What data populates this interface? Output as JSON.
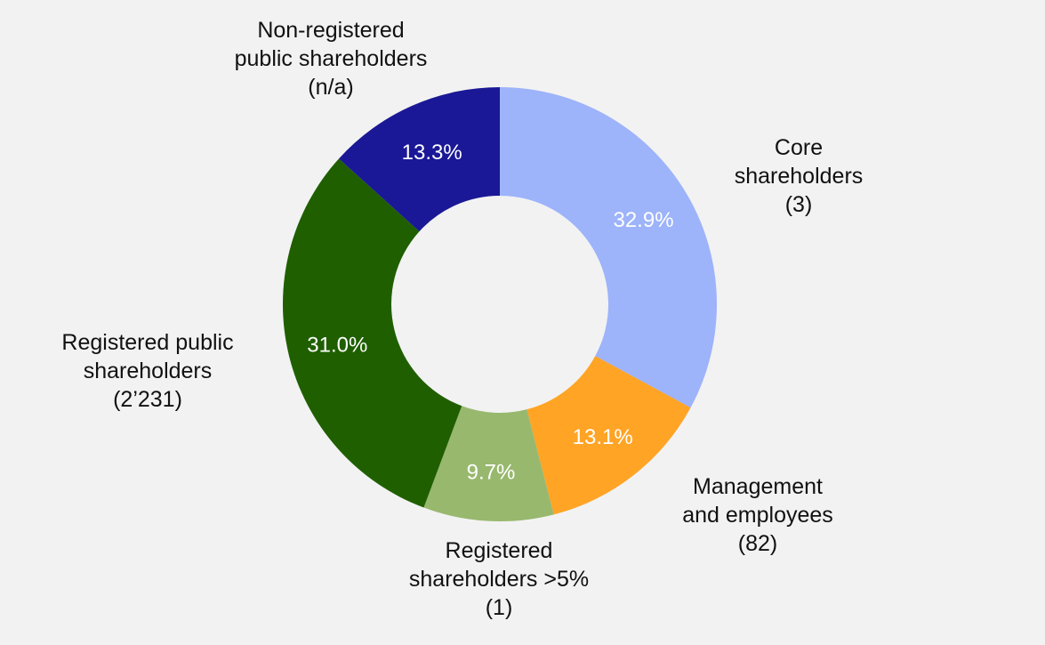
{
  "chart_data": {
    "type": "pie",
    "donut": true,
    "start": "top, clockwise",
    "slices": [
      {
        "name": "Core shareholders",
        "label_lines": [
          "Core",
          "shareholders",
          "(3)"
        ],
        "count": "3",
        "value": 32.9,
        "value_label": "32.9%",
        "color": "#9db3fa"
      },
      {
        "name": "Management and employees",
        "label_lines": [
          "Management",
          "and employees",
          "(82)"
        ],
        "count": "82",
        "value": 13.1,
        "value_label": "13.1%",
        "color": "#ffa425"
      },
      {
        "name": "Registered shareholders >5%",
        "label_lines": [
          "Registered",
          "shareholders >5%",
          "(1)"
        ],
        "count": "1",
        "value": 9.7,
        "value_label": "9.7%",
        "color": "#98b86e"
      },
      {
        "name": "Registered public shareholders",
        "label_lines": [
          "Registered public",
          "shareholders",
          "(2’231)"
        ],
        "count": "2’231",
        "value": 31.0,
        "value_label": "31.0%",
        "color": "#1f5f00"
      },
      {
        "name": "Non-registered public shareholders",
        "label_lines": [
          "Non-registered",
          "public shareholders",
          "(n/a)"
        ],
        "count": "n/a",
        "value": 13.3,
        "value_label": "13.3%",
        "color": "#1a1896"
      }
    ]
  }
}
